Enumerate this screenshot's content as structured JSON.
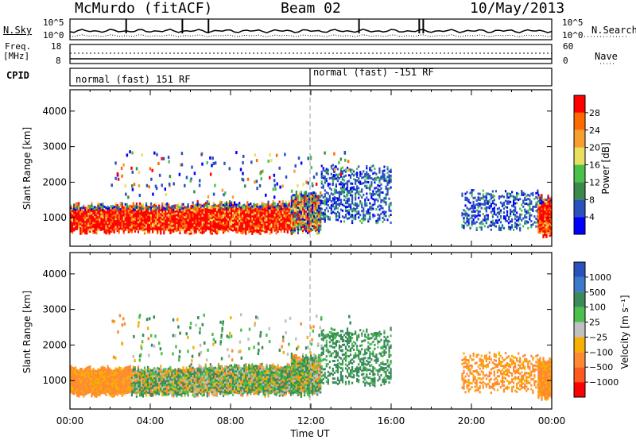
{
  "header": {
    "station": "McMurdo (fitACF)",
    "beam": "Beam 02",
    "date": "10/May/2013"
  },
  "top_panels": {
    "nsky_label": "N.Sky",
    "nsky_ticks": [
      "10^5",
      "10^0"
    ],
    "nsearch_label": "N.Search",
    "nsearch_ticks": [
      "10^5",
      "10^0"
    ],
    "freq_label": "Freq.",
    "freq_unit": "[MHz]",
    "freq_ticks": [
      "18",
      "8"
    ],
    "nave_label": "Nave",
    "nave_ticks": [
      "60",
      "0"
    ],
    "cpid_label": "CPID",
    "cpid_segments": [
      "normal (fast) 151 RF",
      "normal (fast) -151 RF"
    ],
    "cpid_switch_time": "12:00"
  },
  "chart_data": [
    {
      "type": "heatmap",
      "title": "",
      "ylabel": "Slant Range [km]",
      "yticks": [
        1000,
        2000,
        3000,
        4000
      ],
      "ylim": [
        200,
        4600
      ],
      "xlim": [
        "00:00",
        "24:00"
      ],
      "colorbar_label": "Power [dB]",
      "colorbar_ticks": [
        4,
        8,
        12,
        16,
        20,
        24,
        28
      ],
      "colorbar_colors": [
        "#0000ff",
        "#2a52be",
        "#3a8a4a",
        "#4bc04b",
        "#e8e060",
        "#f7a030",
        "#ff6a00",
        "#ff0000"
      ],
      "regions": [
        {
          "t": [
            0.0,
            6.0
          ],
          "range": [
            600,
            1350
          ],
          "level": "high"
        },
        {
          "t": [
            6.0,
            11.0
          ],
          "range": [
            600,
            1400
          ],
          "level": "high"
        },
        {
          "t": [
            11.0,
            12.5
          ],
          "range": [
            600,
            1700
          ],
          "level": "mixed"
        },
        {
          "t": [
            12.5,
            16.0
          ],
          "range": [
            900,
            2400
          ],
          "level": "low"
        },
        {
          "t": [
            19.5,
            23.3
          ],
          "range": [
            700,
            1700
          ],
          "level": "low"
        },
        {
          "t": [
            23.3,
            24.0
          ],
          "range": [
            500,
            1600
          ],
          "level": "high"
        }
      ]
    },
    {
      "type": "heatmap",
      "title": "",
      "ylabel": "Slant Range [km]",
      "yticks": [
        1000,
        2000,
        3000,
        4000
      ],
      "ylim": [
        200,
        4600
      ],
      "xlim": [
        "00:00",
        "24:00"
      ],
      "xlabel": "Time UT",
      "xticks": [
        "00:00",
        "04:00",
        "08:00",
        "12:00",
        "16:00",
        "20:00",
        "00:00"
      ],
      "colorbar_label": "Velocity [m s⁻¹]",
      "colorbar_ticks": [
        1000,
        500,
        100,
        25,
        -25,
        -100,
        -500,
        -1000
      ],
      "colorbar_colors": [
        "#2a52be",
        "#3a7ac8",
        "#3a8a5a",
        "#4bc04b",
        "#c0c0c0",
        "#f7b000",
        "#ff8a30",
        "#ff5a20",
        "#ff0000"
      ]
    }
  ]
}
